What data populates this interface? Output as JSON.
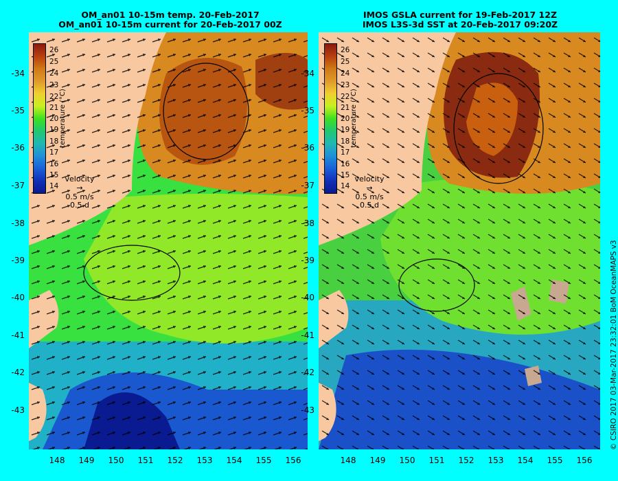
{
  "left_panel": {
    "title_line1": "OM_an01 10-15m temp. 20-Feb-2017",
    "title_line2": "OM_an01 10-15m current for 20-Feb-2017 00Z"
  },
  "right_panel": {
    "title_line1": "IMOS GSLA current for 19-Feb-2017 12Z",
    "title_line2": "IMOS L3S-3d SST at 20-Feb-2017 09:20Z"
  },
  "latitude_ticks": [
    "-34",
    "-35",
    "-36",
    "-37",
    "-38",
    "-39",
    "-40",
    "-41",
    "-42",
    "-43"
  ],
  "longitude_ticks": [
    "148",
    "149",
    "150",
    "151",
    "152",
    "153",
    "154",
    "155",
    "156"
  ],
  "colorbar": {
    "labels": [
      "26",
      "25",
      "24",
      "23",
      "22",
      "21",
      "20",
      "19",
      "18",
      "17",
      "16",
      "15",
      "14"
    ],
    "axis_label": "temperature (°C)",
    "colors": [
      "#8a1a10",
      "#b8400e",
      "#cf7a18",
      "#e09a2a",
      "#f0d030",
      "#c8f020",
      "#40e020",
      "#20c870",
      "#20b8b0",
      "#2090d8",
      "#1860d8",
      "#1030b8",
      "#0a1a90"
    ]
  },
  "velocity_key": {
    "title": "velocity",
    "speed": "0.5 m/s",
    "duration": "0.5 d"
  },
  "credit": "© CSIRO 2017   03-Mar-2017 23:32:01 BoM OceanMAPS v3",
  "colors": {
    "background": "#00ffff",
    "land": "#f8c8a0",
    "warm_eddy": "#c86010"
  }
}
